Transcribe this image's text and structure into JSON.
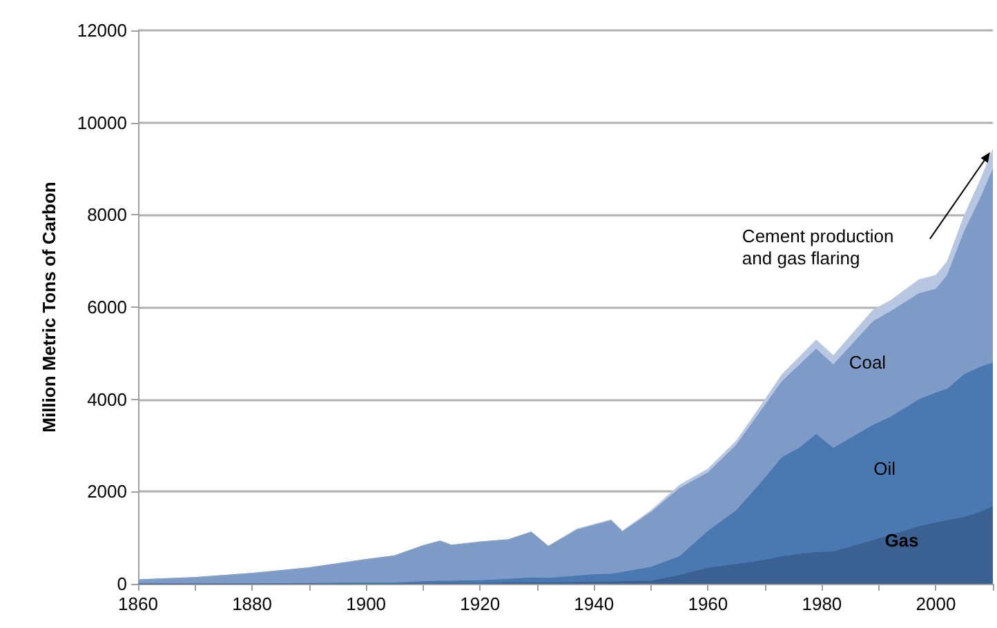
{
  "chart_data": {
    "type": "area",
    "stacked": true,
    "ylabel": "Million Metric Tons of Carbon",
    "x": [
      1860,
      1870,
      1880,
      1890,
      1900,
      1905,
      1910,
      1913,
      1915,
      1920,
      1925,
      1929,
      1932,
      1937,
      1940,
      1943,
      1945,
      1950,
      1955,
      1960,
      1965,
      1970,
      1973,
      1976,
      1979,
      1982,
      1989,
      1992,
      1997,
      2000,
      2002,
      2005,
      2008,
      2010
    ],
    "series": [
      {
        "name": "Gas",
        "color": "#3b6092",
        "values": [
          0,
          0,
          0,
          0,
          0,
          0,
          10,
          10,
          10,
          10,
          20,
          20,
          20,
          30,
          40,
          40,
          50,
          60,
          180,
          340,
          420,
          510,
          590,
          640,
          680,
          690,
          940,
          1050,
          1240,
          1320,
          1370,
          1440,
          1560,
          1680
        ]
      },
      {
        "name": "Oil",
        "color": "#4a78b0",
        "values": [
          0,
          0,
          0,
          10,
          20,
          20,
          40,
          50,
          50,
          60,
          80,
          110,
          100,
          140,
          160,
          170,
          200,
          300,
          410,
          800,
          1170,
          1780,
          2150,
          2300,
          2560,
          2250,
          2500,
          2560,
          2750,
          2820,
          2850,
          3100,
          3150,
          3110
        ]
      },
      {
        "name": "Coal",
        "color": "#7e9bc8",
        "values": [
          90,
          140,
          230,
          340,
          510,
          590,
          780,
          870,
          780,
          840,
          860,
          990,
          690,
          1000,
          1070,
          1160,
          880,
          1190,
          1480,
          1270,
          1420,
          1580,
          1650,
          1800,
          1850,
          1810,
          2250,
          2290,
          2300,
          2250,
          2470,
          3100,
          3700,
          4200
        ]
      },
      {
        "name": "Cement production and gas flaring",
        "color": "#b8c7e1",
        "values": [
          0,
          0,
          0,
          0,
          0,
          0,
          0,
          0,
          0,
          0,
          0,
          10,
          10,
          20,
          20,
          20,
          20,
          40,
          70,
          80,
          90,
          120,
          150,
          170,
          200,
          200,
          250,
          240,
          300,
          300,
          300,
          350,
          400,
          430
        ]
      }
    ],
    "xlim": [
      1860,
      2010
    ],
    "xticks": [
      1860,
      {
        "value": 1870,
        "label": null
      },
      1880,
      {
        "value": 1890,
        "label": null
      },
      1900,
      {
        "value": 1910,
        "label": null
      },
      1920,
      {
        "value": 1930,
        "label": null
      },
      1940,
      {
        "value": 1950,
        "label": null
      },
      1960,
      {
        "value": 1970,
        "label": null
      },
      1980,
      {
        "value": 1990,
        "label": null
      },
      2000,
      {
        "value": 2010,
        "label": null
      }
    ],
    "ylim": [
      0,
      12000
    ],
    "yticks": [
      0,
      2000,
      4000,
      6000,
      8000,
      10000,
      12000
    ],
    "grid": "y",
    "legend": false,
    "marker": "none",
    "line_style": "solid"
  }
}
